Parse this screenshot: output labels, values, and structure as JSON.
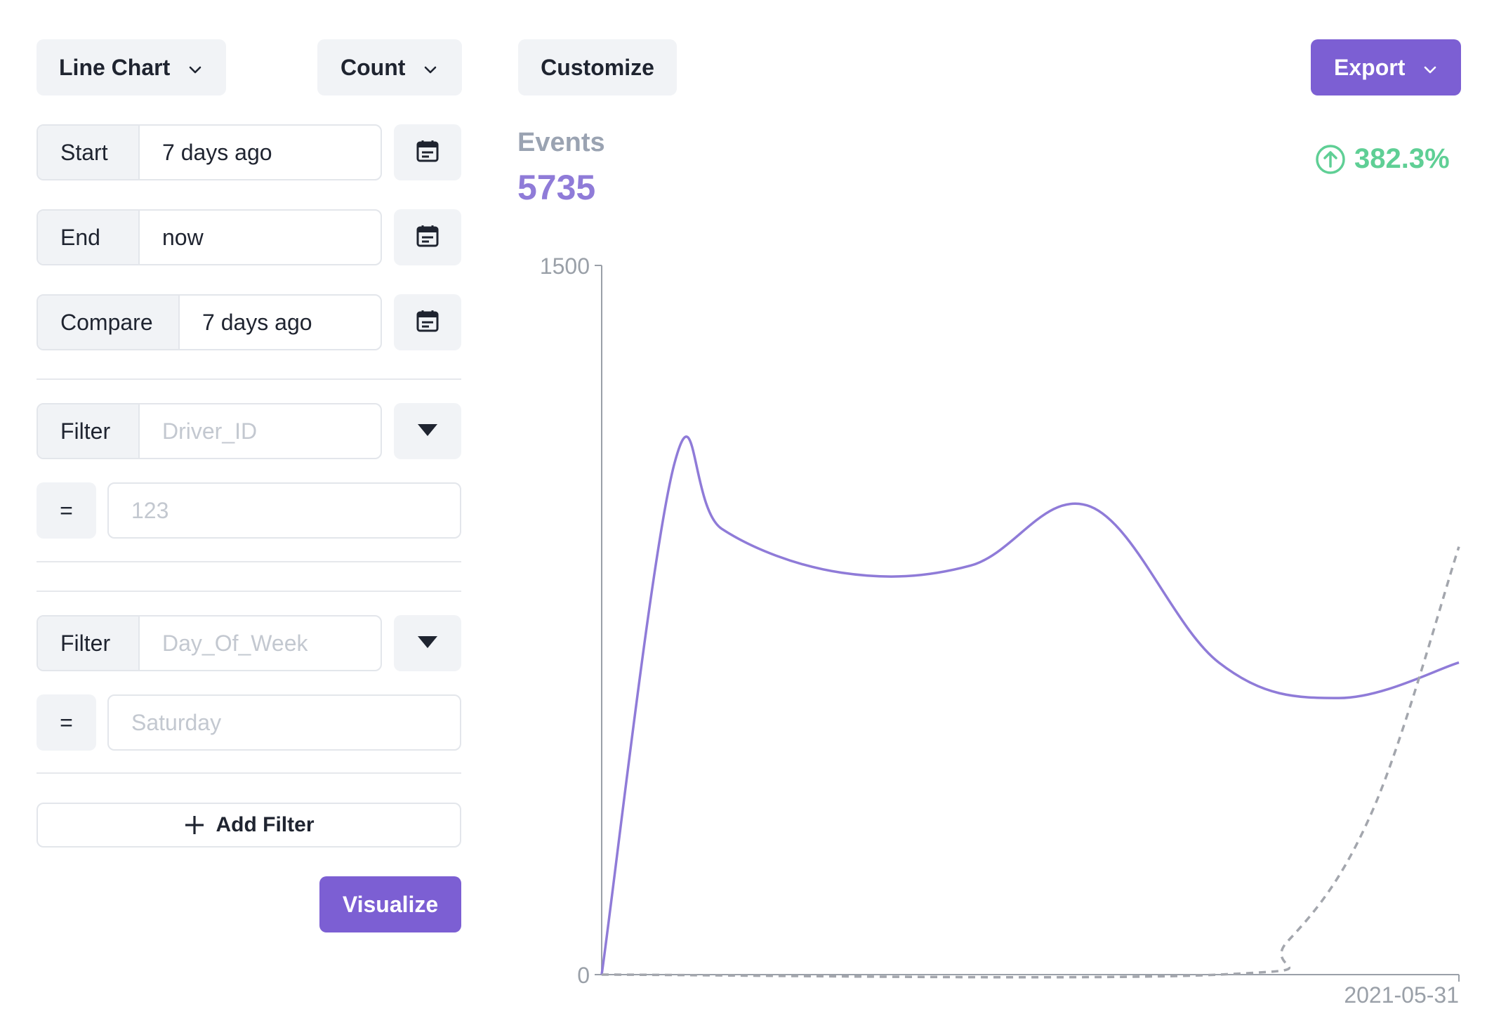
{
  "toolbar": {
    "chart_type_label": "Line Chart",
    "measure_label": "Count",
    "customize_label": "Customize",
    "export_label": "Export"
  },
  "date_range": {
    "start_label": "Start",
    "start_value": "7 days ago",
    "end_label": "End",
    "end_value": "now",
    "compare_label": "Compare",
    "compare_value": "7 days ago"
  },
  "filters": [
    {
      "label": "Filter",
      "field_placeholder": "Driver_ID",
      "operator": "=",
      "value_placeholder": "123"
    },
    {
      "label": "Filter",
      "field_placeholder": "Day_Of_Week",
      "operator": "=",
      "value_placeholder": "Saturday"
    }
  ],
  "add_filter_label": "Add Filter",
  "visualize_label": "Visualize",
  "summary": {
    "metric_label": "Events",
    "metric_value": "5735",
    "change_pct": "382.3%"
  },
  "colors": {
    "accent": "#7c5fd3",
    "positive": "#5fcf95",
    "muted": "#9aa3b2"
  },
  "chart_data": {
    "type": "line",
    "ylim": [
      0,
      1500
    ],
    "y_ticks": [
      "0",
      "1500"
    ],
    "x_tick_label": "2021-05-31",
    "series": [
      {
        "style": "solid",
        "color": "#8f7bd8",
        "points": [
          [
            0,
            0
          ],
          [
            0.085,
            1082
          ],
          [
            0.14,
            943
          ],
          [
            0.28,
            850
          ],
          [
            0.43,
            865
          ],
          [
            0.57,
            990
          ],
          [
            0.72,
            660
          ],
          [
            0.86,
            585
          ],
          [
            1.0,
            660
          ]
        ]
      },
      {
        "style": "dashed",
        "color": "#a3a6ad",
        "points": [
          [
            0,
            0
          ],
          [
            0.72,
            0
          ],
          [
            0.8,
            70
          ],
          [
            0.9,
            350
          ],
          [
            1.0,
            905
          ]
        ]
      }
    ]
  }
}
